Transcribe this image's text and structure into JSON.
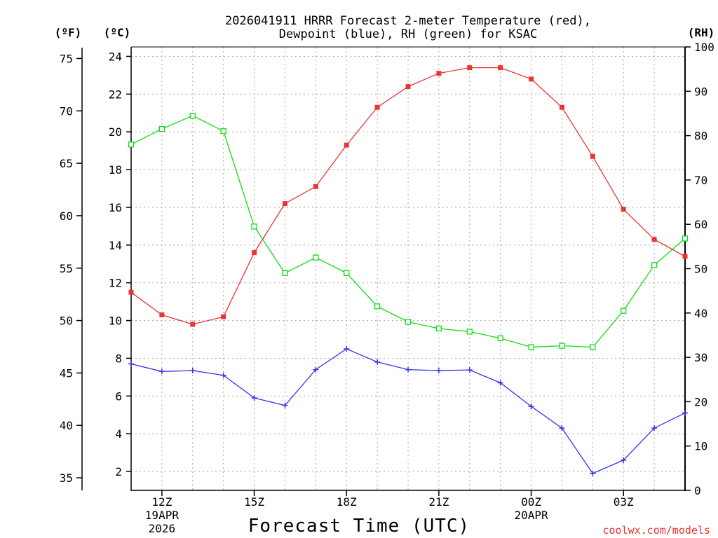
{
  "chart_data": {
    "type": "line",
    "title_line1": "2026041911 HRRR Forecast 2-meter Temperature (red),",
    "title_line2": "Dewpoint (blue), RH (green) for KSAC",
    "xlabel": "Forecast Time (UTC)",
    "credit": "coolwx.com/models",
    "left_outer_unit": "(ºF)",
    "left_inner_unit": "(ºC)",
    "right_unit": "(RH)",
    "x_ticks": [
      {
        "hour": 1,
        "label": "12Z",
        "line2": "19APR",
        "line3": "2026"
      },
      {
        "hour": 4,
        "label": "15Z",
        "line2": "",
        "line3": ""
      },
      {
        "hour": 7,
        "label": "18Z",
        "line2": "",
        "line3": ""
      },
      {
        "hour": 10,
        "label": "21Z",
        "line2": "",
        "line3": ""
      },
      {
        "hour": 13,
        "label": "00Z",
        "line2": "20APR",
        "line3": ""
      },
      {
        "hour": 16,
        "label": "03Z",
        "line2": "",
        "line3": ""
      }
    ],
    "x_range": [
      0,
      18
    ],
    "celsius_axis": {
      "range": [
        1,
        24.5
      ],
      "ticks": [
        2,
        4,
        6,
        8,
        10,
        12,
        14,
        16,
        18,
        20,
        22,
        24
      ]
    },
    "fahrenheit_axis": {
      "ticks": [
        35,
        40,
        45,
        50,
        55,
        60,
        65,
        70,
        75
      ]
    },
    "rh_axis": {
      "range": [
        0,
        100
      ],
      "ticks": [
        0,
        10,
        20,
        30,
        40,
        50,
        60,
        70,
        80,
        90,
        100
      ]
    },
    "series": [
      {
        "name": "Temperature",
        "unit": "C",
        "color": "#ee3333",
        "marker": "square-filled",
        "values": [
          11.5,
          10.3,
          9.8,
          10.2,
          13.6,
          16.2,
          17.1,
          19.3,
          21.3,
          22.4,
          23.1,
          23.4,
          23.4,
          22.8,
          21.3,
          18.7,
          15.9,
          14.3,
          13.4
        ]
      },
      {
        "name": "Dewpoint",
        "unit": "C",
        "color": "#3333ee",
        "marker": "plus",
        "values": [
          7.7,
          7.3,
          7.35,
          7.1,
          5.9,
          5.5,
          7.4,
          8.5,
          7.8,
          7.4,
          7.35,
          7.38,
          6.7,
          5.45,
          4.3,
          1.9,
          2.6,
          4.3,
          5.1
        ]
      },
      {
        "name": "RH",
        "unit": "%",
        "color": "#11dd11",
        "marker": "square-open",
        "values": [
          78,
          81.5,
          84.5,
          81,
          59.5,
          49,
          52.5,
          49,
          41.5,
          38,
          36.5,
          35.8,
          34.3,
          32.3,
          32.6,
          32.3,
          40.5,
          50.8,
          56.8
        ]
      }
    ]
  }
}
